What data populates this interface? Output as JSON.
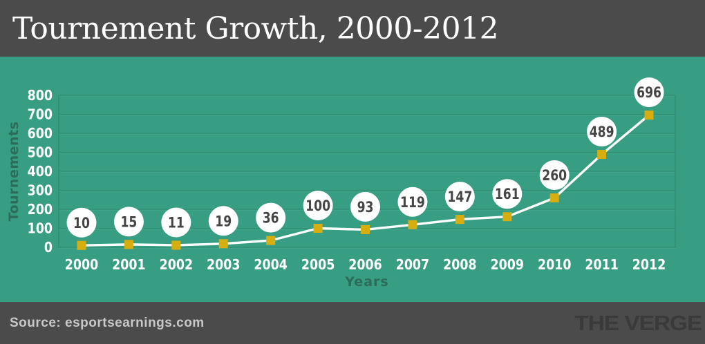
{
  "header": {
    "title": "Tournement Growth, 2000-2012"
  },
  "footer": {
    "source": "Source: esportsearnings.com",
    "brand": "THE VERGE"
  },
  "chart_data": {
    "type": "line",
    "title": "Tournement Growth, 2000-2012",
    "categories": [
      "2000",
      "2001",
      "2002",
      "2003",
      "2004",
      "2005",
      "2006",
      "2007",
      "2008",
      "2009",
      "2010",
      "2011",
      "2012"
    ],
    "values": [
      10,
      15,
      11,
      19,
      36,
      100,
      93,
      119,
      147,
      161,
      260,
      489,
      696
    ],
    "xlabel": "Years",
    "ylabel": "Tournements",
    "ylim": [
      0,
      800
    ],
    "yticks": [
      0,
      100,
      200,
      300,
      400,
      500,
      600,
      700,
      800
    ],
    "grid": true,
    "legend": "none",
    "marker_shape": "square",
    "data_labels": "value in white circle above each point"
  },
  "colors": {
    "background_teal": "#389e83",
    "band_gray": "#4b4b4b",
    "grid_dark": "#2f8b72",
    "grid_light": "#47ab92",
    "line": "#ffffff",
    "marker_yellow": "#d6ae10",
    "badge_fill": "#ffffff",
    "badge_text": "#454545",
    "tick_label": "#ffffff",
    "axis_title": "#2c6b5a",
    "source_text": "#c9c9c9",
    "brand_text": "#3a3a3a"
  }
}
